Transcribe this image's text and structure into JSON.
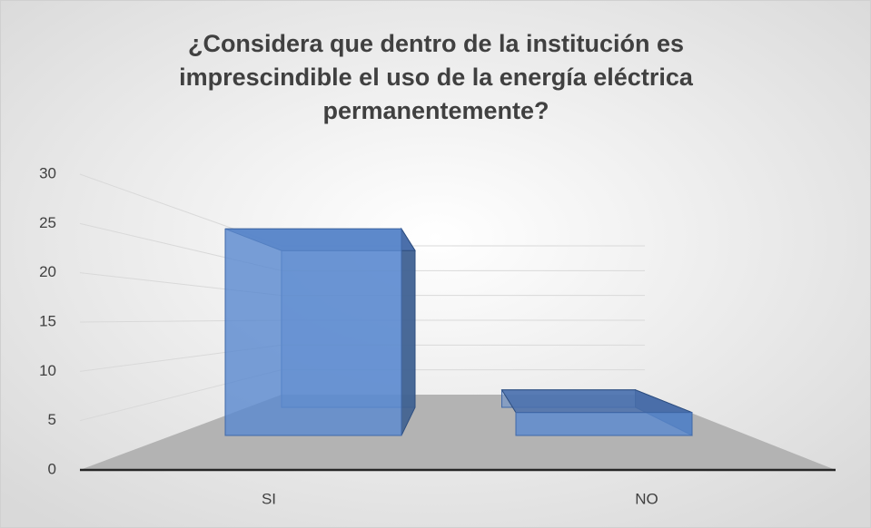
{
  "chart_data": {
    "type": "bar3d",
    "title": "¿Considera que dentro de la institución es imprescindible el uso de la energía eléctrica permanentemente?",
    "categories": [
      "SI",
      "NO"
    ],
    "values": [
      27,
      3
    ],
    "color": "#5b8ad0",
    "ylim": [
      0,
      30
    ],
    "yticks": [
      0,
      5,
      10,
      15,
      20,
      25,
      30
    ],
    "grid": true
  }
}
